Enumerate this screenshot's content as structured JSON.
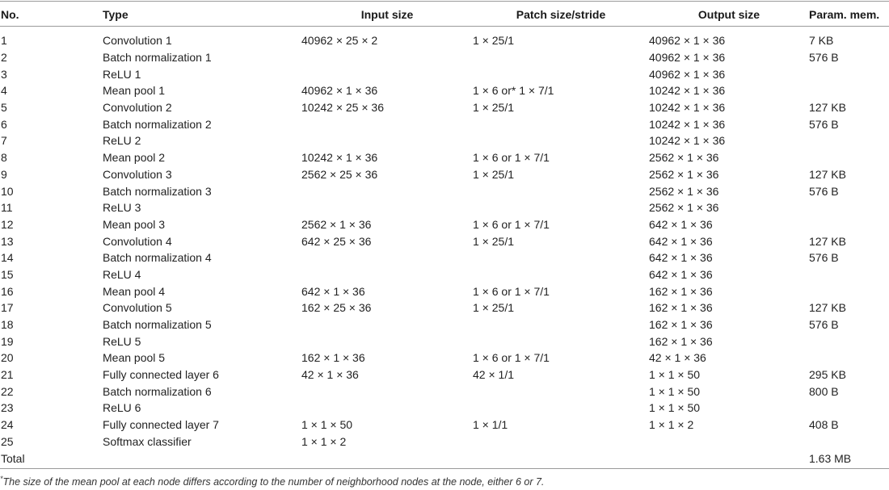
{
  "headers": [
    "No.",
    "Type",
    "Input size",
    "Patch size/stride",
    "Output size",
    "Param. mem."
  ],
  "rows": [
    [
      "1",
      "Convolution 1",
      "40962 × 25 × 2",
      "1 × 25/1",
      "40962 × 1 × 36",
      "7 KB"
    ],
    [
      "2",
      "Batch normalization 1",
      "",
      "",
      "40962 × 1 × 36",
      "576 B"
    ],
    [
      "3",
      "ReLU 1",
      "",
      "",
      "40962 × 1 × 36",
      ""
    ],
    [
      "4",
      "Mean pool 1",
      "40962 × 1 × 36",
      "1 × 6 or* 1 × 7/1",
      "10242 × 1 × 36",
      ""
    ],
    [
      "5",
      "Convolution 2",
      "10242 × 25 × 36",
      "1 × 25/1",
      "10242 × 1 × 36",
      "127 KB"
    ],
    [
      "6",
      "Batch normalization 2",
      "",
      "",
      "10242 × 1 × 36",
      "576 B"
    ],
    [
      "7",
      "ReLU 2",
      "",
      "",
      "10242 × 1 × 36",
      ""
    ],
    [
      "8",
      "Mean pool 2",
      "10242 × 1 × 36",
      "1 × 6 or 1 × 7/1",
      "2562 × 1 × 36",
      ""
    ],
    [
      "9",
      "Convolution 3",
      "2562 × 25 × 36",
      "1 × 25/1",
      "2562 × 1 × 36",
      "127 KB"
    ],
    [
      "10",
      "Batch normalization 3",
      "",
      "",
      "2562 × 1 × 36",
      "576 B"
    ],
    [
      "11",
      "ReLU 3",
      "",
      "",
      "2562 × 1 × 36",
      ""
    ],
    [
      "12",
      "Mean pool 3",
      "2562 × 1 × 36",
      "1 × 6 or 1 × 7/1",
      "642 × 1 × 36",
      ""
    ],
    [
      "13",
      "Convolution 4",
      "642 × 25 × 36",
      "1 × 25/1",
      "642 × 1 × 36",
      "127 KB"
    ],
    [
      "14",
      "Batch normalization 4",
      "",
      "",
      "642 × 1 × 36",
      "576 B"
    ],
    [
      "15",
      "ReLU 4",
      "",
      "",
      "642 × 1 × 36",
      ""
    ],
    [
      "16",
      "Mean pool 4",
      "642 × 1 × 36",
      "1 × 6 or 1 × 7/1",
      "162 × 1 × 36",
      ""
    ],
    [
      "17",
      "Convolution 5",
      "162 × 25 × 36",
      "1 × 25/1",
      "162 × 1 × 36",
      "127 KB"
    ],
    [
      "18",
      "Batch normalization 5",
      "",
      "",
      "162 × 1 × 36",
      "576 B"
    ],
    [
      "19",
      "ReLU 5",
      "",
      "",
      "162 × 1 × 36",
      ""
    ],
    [
      "20",
      "Mean pool 5",
      "162 × 1 × 36",
      "1 × 6 or 1 × 7/1",
      "42 × 1 × 36",
      ""
    ],
    [
      "21",
      "Fully connected layer 6",
      "42 × 1 × 36",
      "42 × 1/1",
      "1 × 1 × 50",
      "295 KB"
    ],
    [
      "22",
      "Batch normalization 6",
      "",
      "",
      "1 × 1 × 50",
      "800 B"
    ],
    [
      "23",
      "ReLU 6",
      "",
      "",
      "1 × 1 × 50",
      ""
    ],
    [
      "24",
      "Fully connected layer 7",
      "1 × 1 × 50",
      "1 × 1/1",
      "1 × 1 × 2",
      "408 B"
    ],
    [
      "25",
      "Softmax classifier",
      "1 × 1 × 2",
      "",
      "",
      ""
    ],
    [
      "Total",
      "",
      "",
      "",
      "",
      "1.63 MB"
    ]
  ],
  "footnote": {
    "marker": "*",
    "text": "The size of the mean pool at each node differs according to the number of neighborhood nodes at the node, either 6 or 7."
  }
}
